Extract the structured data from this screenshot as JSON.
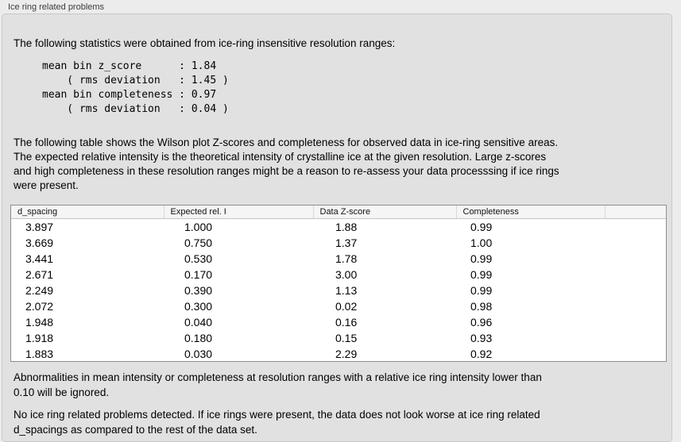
{
  "panel": {
    "title": "Ice ring related problems"
  },
  "intro": {
    "text": "The following statistics were obtained from ice-ring insensitive resolution ranges:"
  },
  "stats_block": {
    "lines": [
      "mean bin z_score      : 1.84",
      "    ( rms deviation   : 1.45 )",
      "mean bin completeness : 0.97",
      "    ( rms deviation   : 0.04 )"
    ]
  },
  "table_description": {
    "lines": [
      "The following table shows the Wilson plot Z-scores and completeness for observed data in ice-ring sensitive areas.",
      "The expected relative intensity is the theoretical intensity of crystalline ice at the given resolution. Large z-scores",
      "and high completeness in these resolution ranges might be a reason to re-assess your data processsing if ice rings",
      "were present."
    ]
  },
  "table": {
    "headers": [
      "d_spacing",
      "Expected rel. I",
      "Data Z-score",
      "Completeness",
      ""
    ],
    "rows": [
      [
        "3.897",
        "1.000",
        "1.88",
        "0.99"
      ],
      [
        "3.669",
        "0.750",
        "1.37",
        "1.00"
      ],
      [
        "3.441",
        "0.530",
        "1.78",
        "0.99"
      ],
      [
        "2.671",
        "0.170",
        "3.00",
        "0.99"
      ],
      [
        "2.249",
        "0.390",
        "1.13",
        "0.99"
      ],
      [
        "2.072",
        "0.300",
        "0.02",
        "0.98"
      ],
      [
        "1.948",
        "0.040",
        "0.16",
        "0.96"
      ],
      [
        "1.918",
        "0.180",
        "0.15",
        "0.93"
      ],
      [
        "1.883",
        "0.030",
        "2.29",
        "0.92"
      ]
    ]
  },
  "notes": {
    "ignore_note_lines": [
      "Abnormalities in mean intensity or completeness at resolution ranges with a relative ice ring intensity lower than",
      "0.10 will be ignored."
    ],
    "conclusion_lines": [
      "No ice ring related problems detected. If ice rings were present, the data does not look worse at ice ring related",
      "d_spacings as compared to the rest of the data set."
    ]
  },
  "colors": {
    "outer_background": "#ececec",
    "panel_background": "#e1e1e1",
    "panel_border": "#c8c8c8",
    "table_border": "#8e8e8e",
    "table_header_background": "#f5f5f5",
    "text": "#000000"
  }
}
